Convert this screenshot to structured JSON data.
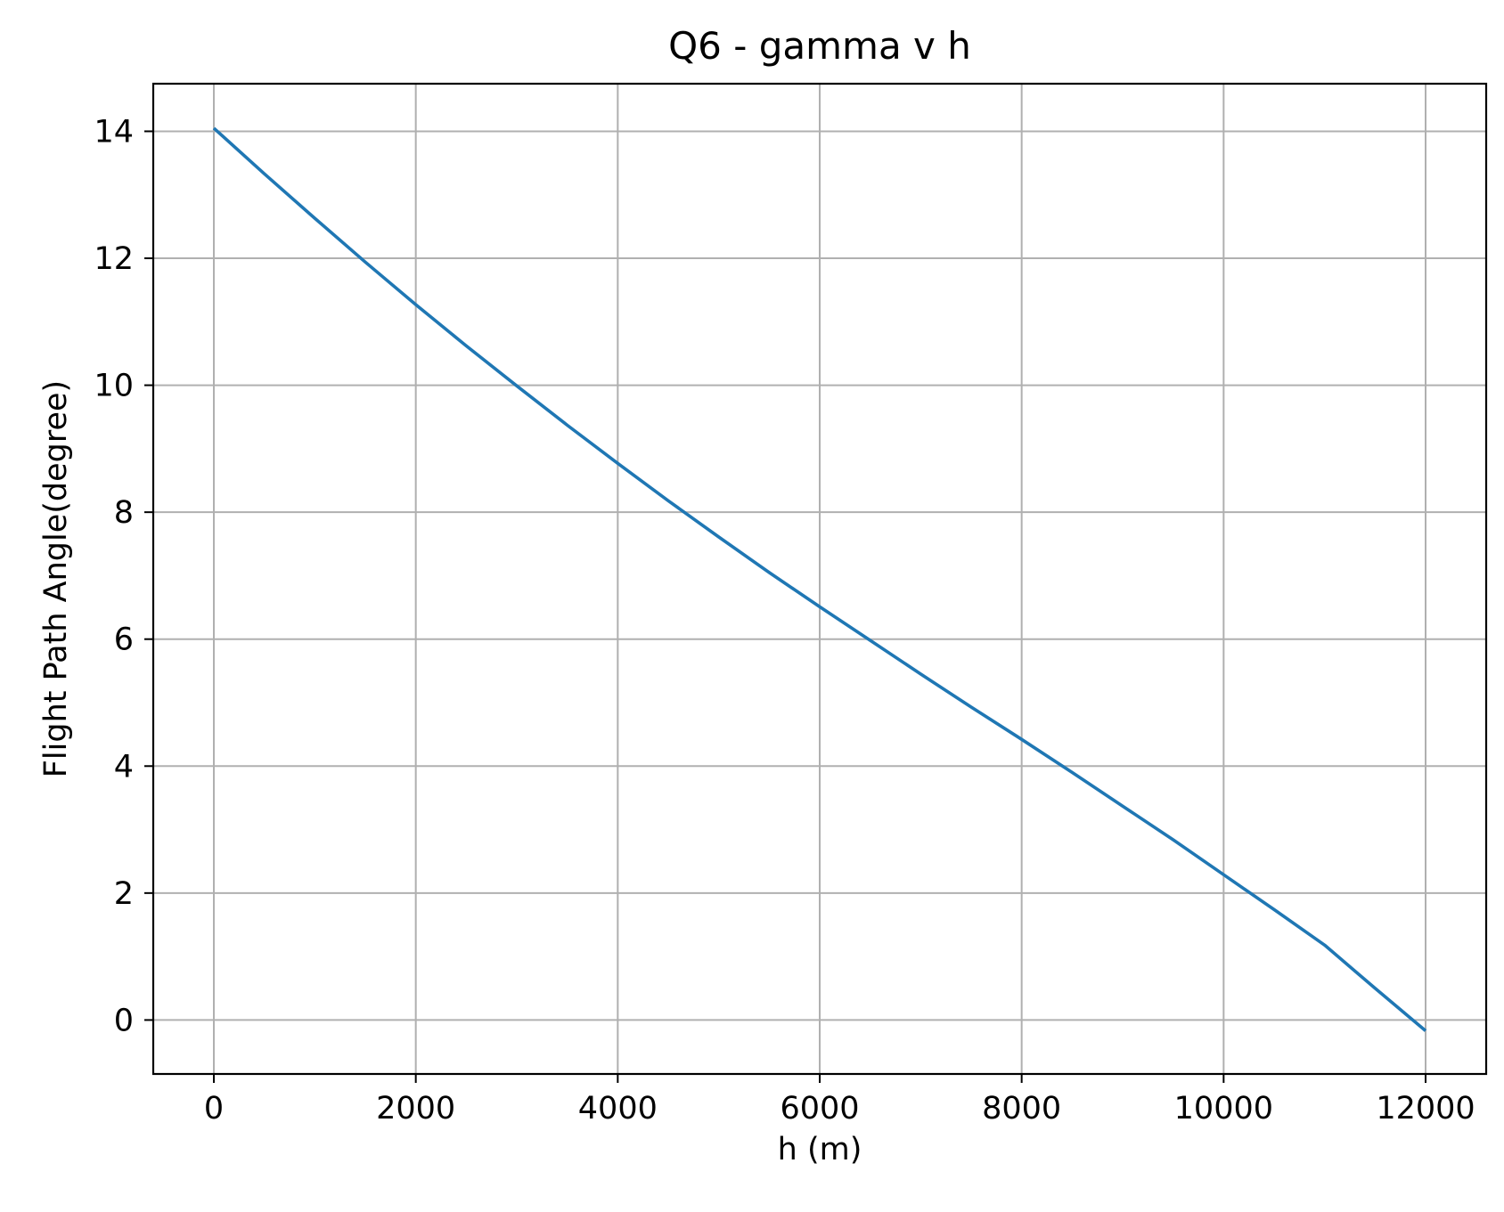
{
  "chart_data": {
    "type": "line",
    "title": "Q6 - gamma v h",
    "xlabel": "h (m)",
    "ylabel": "Flight Path Angle(degree)",
    "xlim": [
      -600,
      12600
    ],
    "ylim": [
      -0.85,
      14.75
    ],
    "xticks": [
      0,
      2000,
      4000,
      6000,
      8000,
      10000,
      12000
    ],
    "yticks": [
      0,
      2,
      4,
      6,
      8,
      10,
      12,
      14
    ],
    "grid": true,
    "line_color": "#1f77b4",
    "series": [
      {
        "x": [
          0,
          500,
          1000,
          1500,
          2000,
          2500,
          3000,
          3500,
          4000,
          4500,
          5000,
          5500,
          6000,
          6500,
          7000,
          7500,
          8000,
          8500,
          9000,
          9500,
          10000,
          10500,
          11000,
          11500,
          12000
        ],
        "y": [
          14.05,
          13.33,
          12.63,
          11.94,
          11.27,
          10.62,
          9.99,
          9.37,
          8.77,
          8.18,
          7.61,
          7.05,
          6.51,
          5.98,
          5.45,
          4.93,
          4.42,
          3.9,
          3.37,
          2.84,
          2.29,
          1.74,
          1.18,
          0.5,
          -0.17
        ]
      }
    ]
  }
}
